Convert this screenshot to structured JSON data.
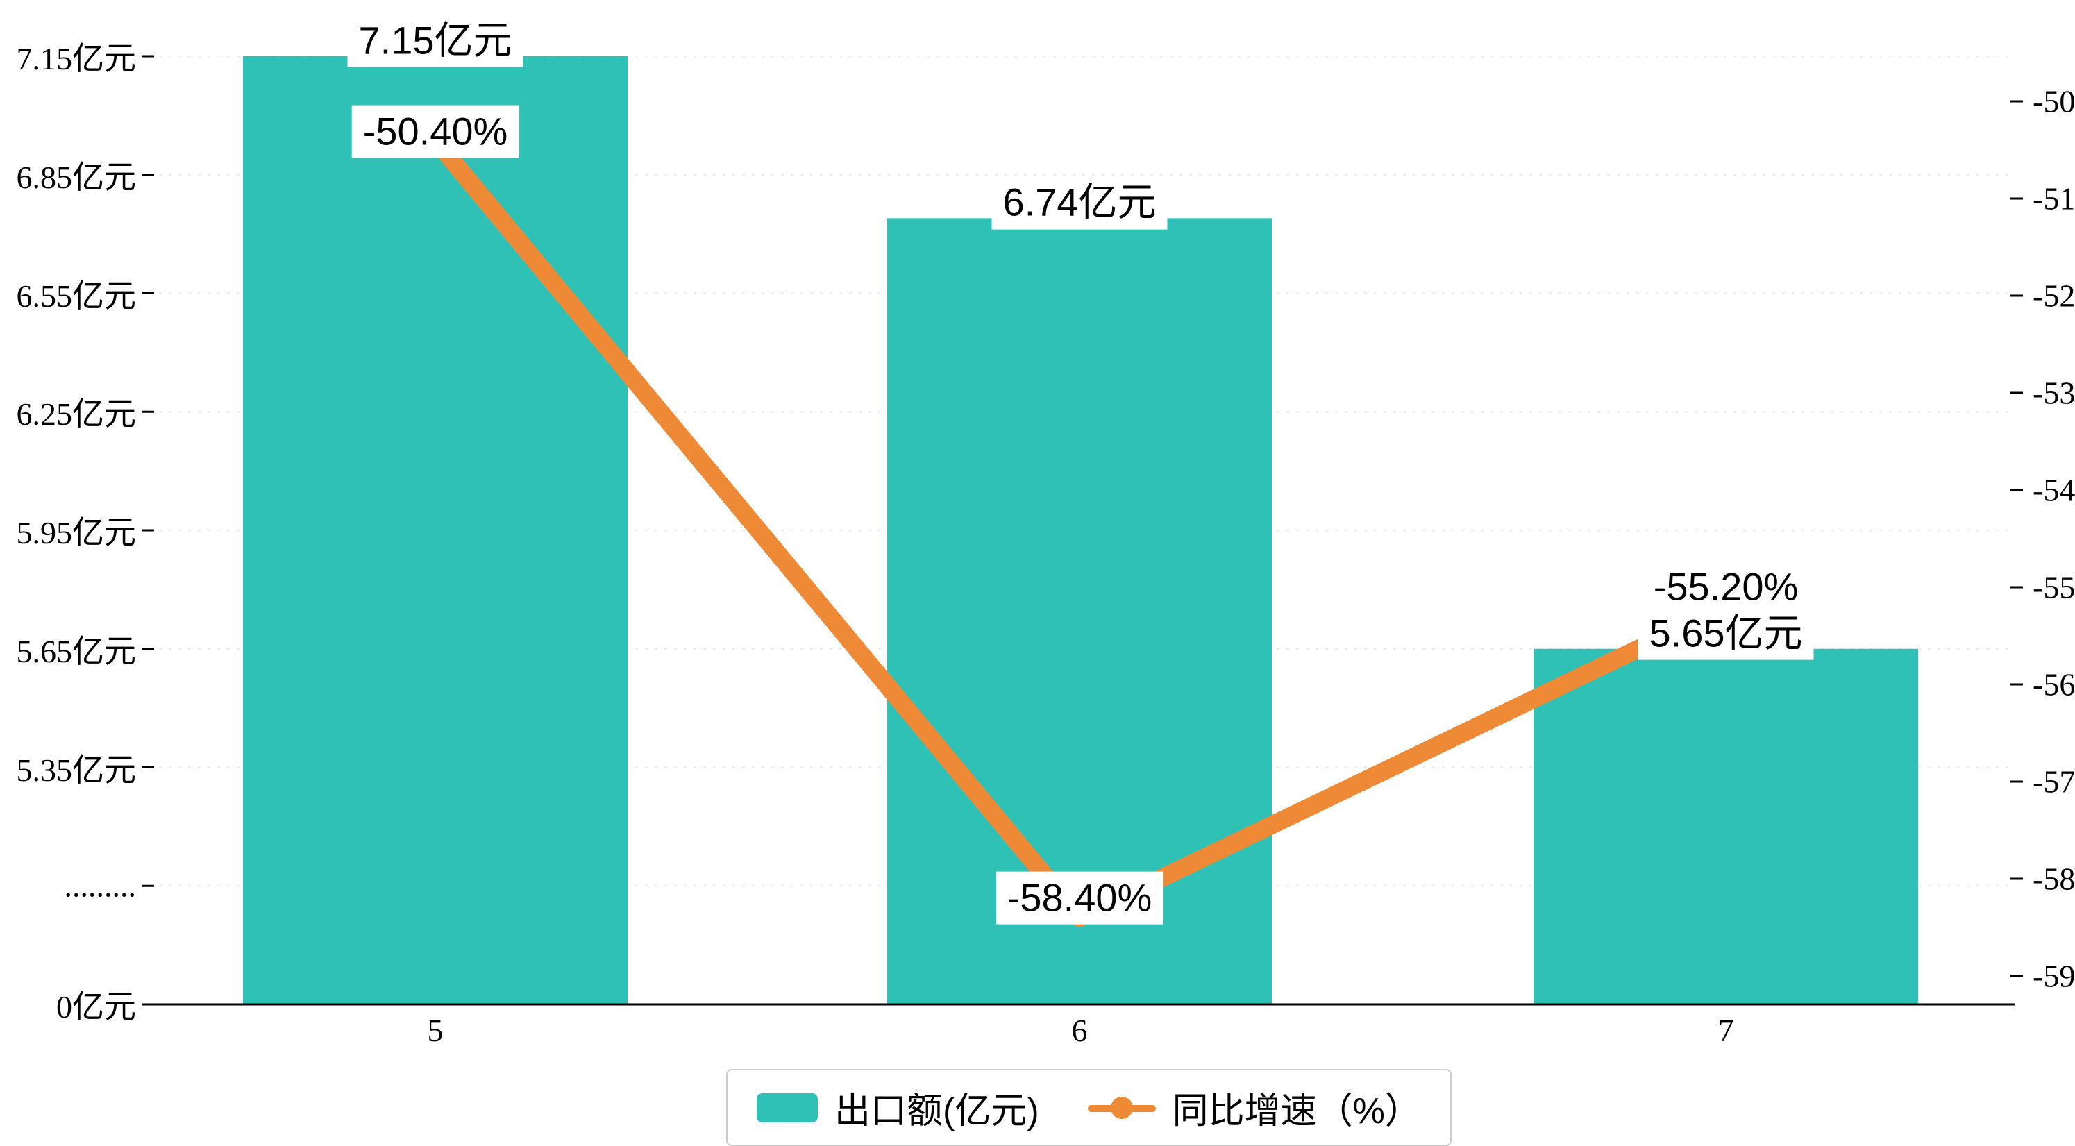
{
  "chart_data": {
    "type": "bar",
    "subtype": "bar-line-combo",
    "background": "#ffffff",
    "categories": [
      "5",
      "6",
      "7"
    ],
    "series": [
      {
        "name": "出口额(亿元)",
        "type": "bar",
        "axis": "left",
        "values": [
          7.15,
          6.74,
          5.65
        ],
        "labels": [
          "7.15亿元",
          "6.74亿元",
          "5.65亿元"
        ],
        "color": "#2fc1b6"
      },
      {
        "name": "同比增速（%）",
        "type": "line",
        "axis": "right",
        "values": [
          -50.4,
          -58.4,
          -55.2
        ],
        "labels": [
          "-50.40%",
          "-58.40%",
          "-55.20%"
        ],
        "color": "#ee8a36"
      }
    ],
    "left_axis": {
      "break": true,
      "unit_per_tick": 0.3,
      "tick_labels_bottom_to_top": [
        "0亿元",
        ".........",
        "5.35亿元",
        "5.65亿元",
        "5.95亿元",
        "6.25亿元",
        "6.55亿元",
        "6.85亿元",
        "7.15亿元"
      ]
    },
    "right_axis": {
      "top_value": -50,
      "bottom_value": -59,
      "tick_labels_top_to_bottom": [
        "-50",
        "-51",
        "-52",
        "-53",
        "-54",
        "-55",
        "-56",
        "-57",
        "-58",
        "-59"
      ]
    },
    "grid": "dashed-horizontal",
    "legend": [
      {
        "label": "出口额(亿元)",
        "marker": "bar-swatch",
        "color": "#2fc1b6"
      },
      {
        "label": "同比增速（%）",
        "marker": "line-dot",
        "color": "#ee8a36"
      }
    ]
  }
}
